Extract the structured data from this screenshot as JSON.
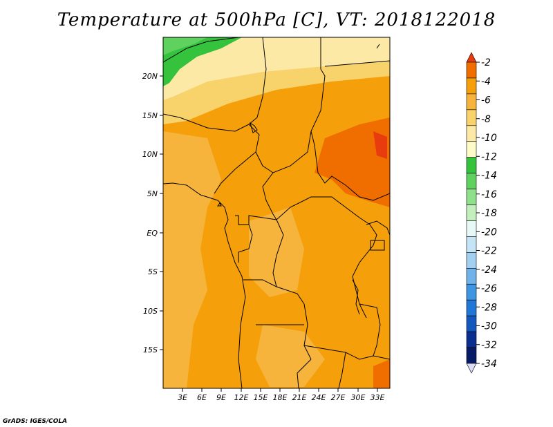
{
  "title": "Temperature at 500hPa [C], VT: 2018122018",
  "credit": "GrADS: IGES/COLA",
  "lat_ticks": [
    "20N",
    "15N",
    "10N",
    "5N",
    "EQ",
    "5S",
    "10S",
    "15S"
  ],
  "lon_ticks": [
    "3E",
    "6E",
    "9E",
    "12E",
    "15E",
    "18E",
    "21E",
    "24E",
    "27E",
    "30E",
    "33E"
  ],
  "colorbar": {
    "labels": [
      "-2",
      "-4",
      "-6",
      "-8",
      "-10",
      "-12",
      "-14",
      "-16",
      "-18",
      "-20",
      "-22",
      "-24",
      "-26",
      "-28",
      "-30",
      "-32",
      "-34"
    ],
    "colors": [
      "#e83c0f",
      "#f06e00",
      "#f5a00a",
      "#f7b43c",
      "#f8d26a",
      "#fde9a6",
      "#fefbc8",
      "#35c23d",
      "#5fd15f",
      "#8fe08a",
      "#c3efbd",
      "#e8f8f6",
      "#c5e4f5",
      "#a3d0f0",
      "#6fb3ea",
      "#3e95e2",
      "#1f78d6",
      "#1457bd",
      "#0a2f8e",
      "#071a66",
      "#dcdcf5"
    ]
  },
  "legend_colors": {
    "warm_tongue": "#f06e00",
    "main_field": "#f5a00a",
    "cooler_field": "#f7b43c",
    "north_field": "#f8d26a",
    "far_north": "#fde9a6",
    "green_patch": "#35c23d"
  }
}
